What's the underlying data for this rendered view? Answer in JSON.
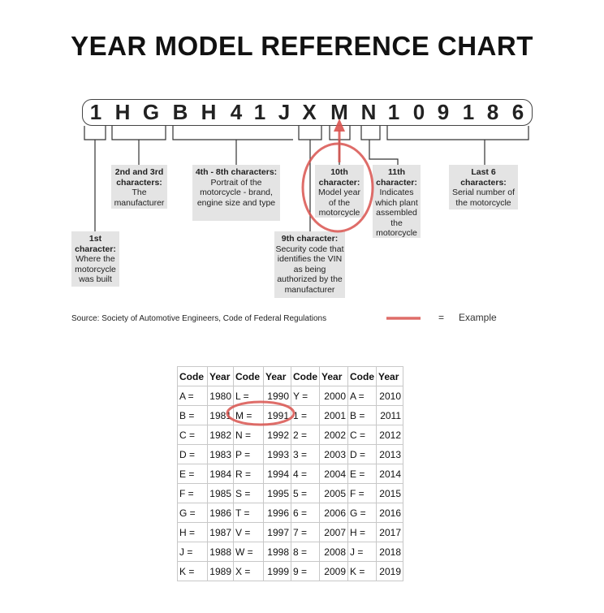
{
  "title": "YEAR MODEL REFERENCE CHART",
  "vin": [
    "1",
    "H",
    "G",
    "B",
    "H",
    "4",
    "1",
    "J",
    "X",
    "M",
    "N",
    "1",
    "0",
    "9",
    "1",
    "8",
    "6"
  ],
  "labels": {
    "first": {
      "head": "1st character:",
      "body": "Where the motorcycle was built"
    },
    "second_third": {
      "head": "2nd and 3rd characters:",
      "body": "The manufacturer"
    },
    "fourth_eighth": {
      "head": "4th - 8th characters:",
      "body": "Portrait of the motorcycle - brand, engine size and type"
    },
    "ninth": {
      "head": "9th character:",
      "body": "Security code that identifies the VIN as being authorized by the manufacturer"
    },
    "tenth": {
      "head": "10th character:",
      "body": "Model year of the motorcycle"
    },
    "eleventh": {
      "head": "11th character:",
      "body": "Indicates which plant assembled the motorcycle"
    },
    "last6": {
      "head": "Last 6 characters:",
      "body": "Serial number of the motorcycle"
    }
  },
  "source": "Source:  Society of Automotive Engineers, Code of Federal Regulations",
  "legend": {
    "equals": "=",
    "label": "Example",
    "color": "#d9534f"
  },
  "accent_color": "#d9534f",
  "table": {
    "headers": [
      "Code",
      "Year",
      "Code",
      "Year",
      "Code",
      "Year",
      "Code",
      "Year"
    ],
    "rows": [
      [
        "A =",
        "1980",
        "L =",
        "1990",
        "Y =",
        "2000",
        "A =",
        "2010"
      ],
      [
        "B =",
        "1981",
        "M =",
        "1991",
        "1 =",
        "2001",
        "B =",
        "2011"
      ],
      [
        "C =",
        "1982",
        "N =",
        "1992",
        "2 =",
        "2002",
        "C =",
        "2012"
      ],
      [
        "D =",
        "1983",
        "P =",
        "1993",
        "3 =",
        "2003",
        "D =",
        "2013"
      ],
      [
        "E =",
        "1984",
        "R =",
        "1994",
        "4 =",
        "2004",
        "E =",
        "2014"
      ],
      [
        "F =",
        "1985",
        "S =",
        "1995",
        "5 =",
        "2005",
        "F =",
        "2015"
      ],
      [
        "G =",
        "1986",
        "T =",
        "1996",
        "6 =",
        "2006",
        "G =",
        "2016"
      ],
      [
        "H =",
        "1987",
        "V =",
        "1997",
        "7 =",
        "2007",
        "H =",
        "2017"
      ],
      [
        "J =",
        "1988",
        "W =",
        "1998",
        "8 =",
        "2008",
        "J =",
        "2018"
      ],
      [
        "K =",
        "1989",
        "X =",
        "1999",
        "9 =",
        "2009",
        "K =",
        "2019"
      ]
    ]
  }
}
